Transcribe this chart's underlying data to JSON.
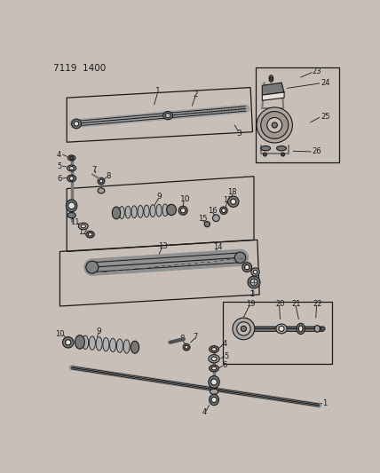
{
  "bg_color": "#c8c0b8",
  "title": "7119  1400",
  "fig_w": 4.28,
  "fig_h": 5.33,
  "dpi": 100
}
